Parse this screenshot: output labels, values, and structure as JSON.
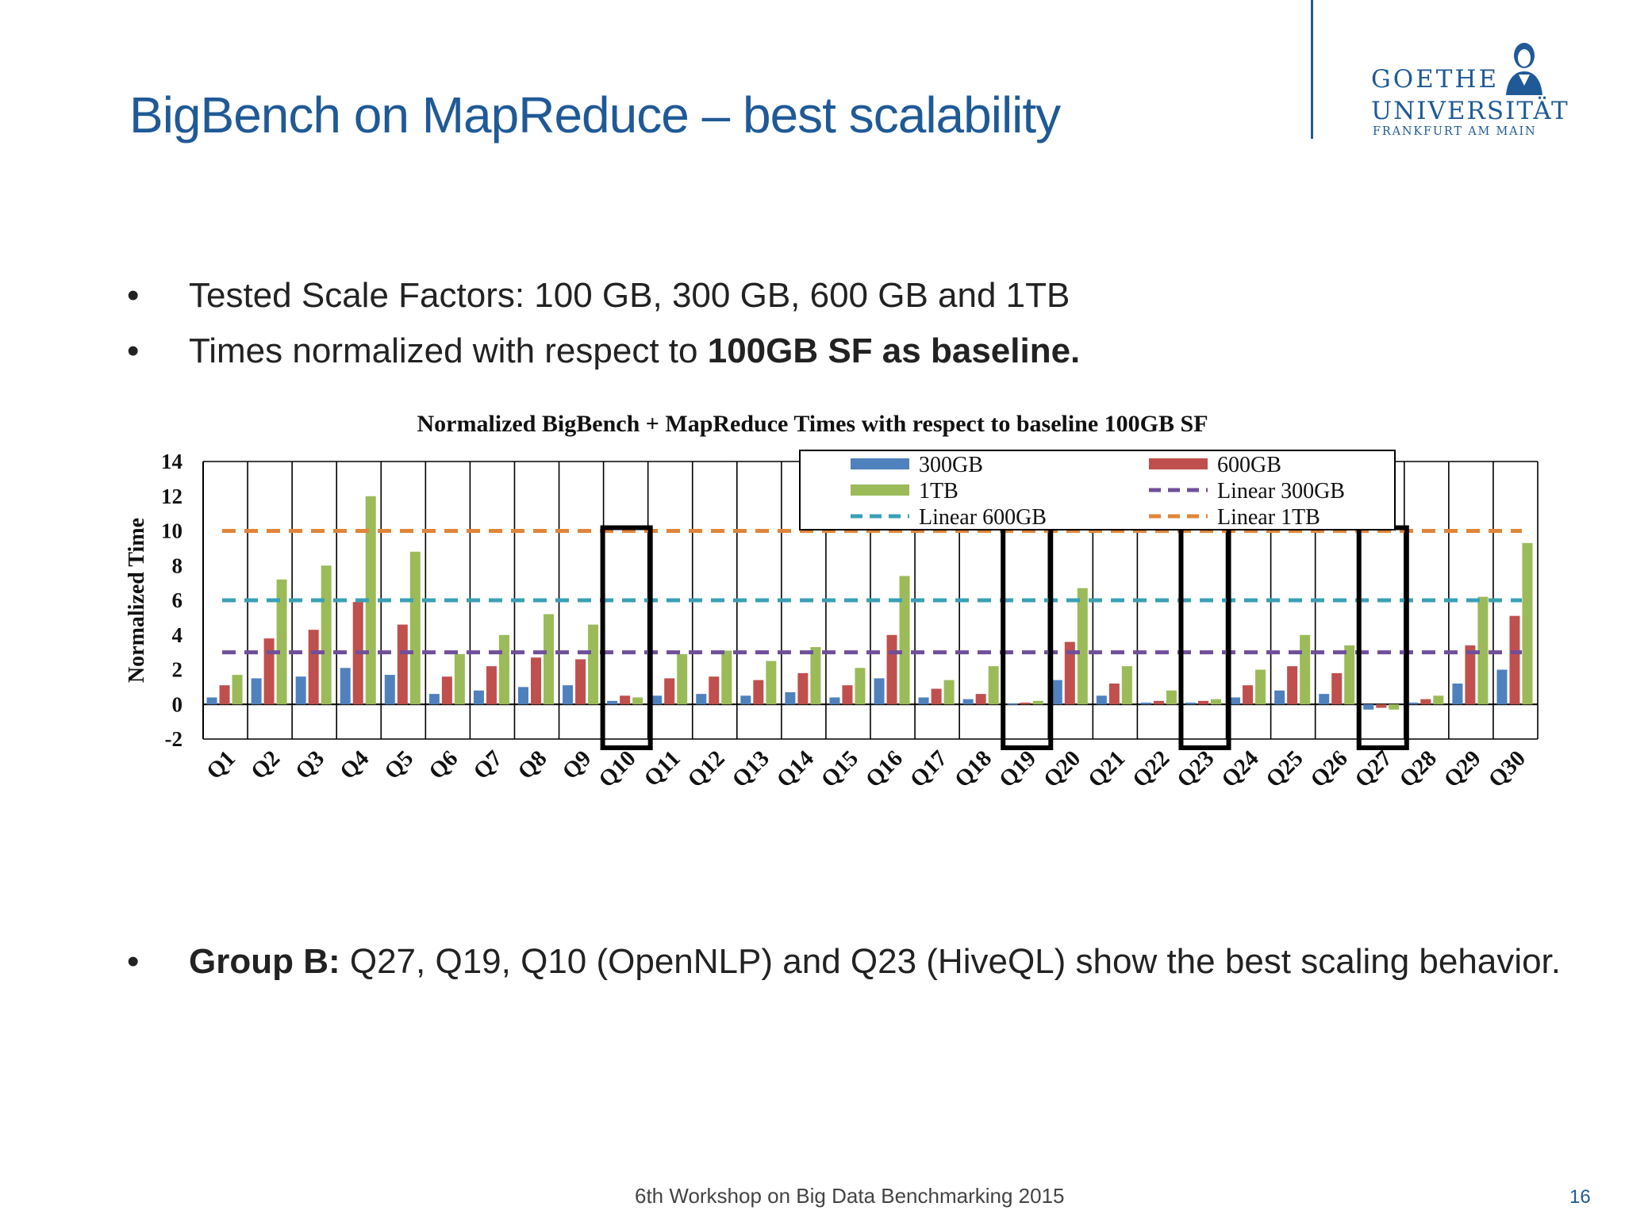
{
  "slide": {
    "title": "BigBench on MapReduce – best scalability",
    "logo": {
      "line1": "GOETHE",
      "line2": "UNIVERSITÄT",
      "line3": "FRANKFURT AM MAIN"
    },
    "bullets": [
      {
        "text": "Tested Scale Factors: 100 GB, 300 GB, 600 GB and 1TB"
      },
      {
        "text": "Times normalized with respect to ",
        "bold": "100GB SF as baseline."
      },
      {
        "bold": "Group B:",
        "text": " Q27, Q19, Q10 (OpenNLP) and Q23 (HiveQL) show the best scaling behavior."
      }
    ],
    "bullet_glyph": "•",
    "footer": "6th Workshop on Big Data Benchmarking 2015",
    "page_number": "16"
  },
  "chart_data": {
    "type": "bar",
    "title": "Normalized BigBench + MapReduce Times with respect to baseline 100GB SF",
    "ylabel": "Normalized Time",
    "xlabel": "",
    "ylim": [
      -2,
      14
    ],
    "yticks": [
      "14",
      "12",
      "10",
      "8",
      "6",
      "4",
      "2",
      "0",
      "-2"
    ],
    "grid": "vertical lines between categories",
    "categories": [
      "Q1",
      "Q2",
      "Q3",
      "Q4",
      "Q5",
      "Q6",
      "Q7",
      "Q8",
      "Q9",
      "Q10",
      "Q11",
      "Q12",
      "Q13",
      "Q14",
      "Q15",
      "Q16",
      "Q17",
      "Q18",
      "Q19",
      "Q20",
      "Q21",
      "Q22",
      "Q23",
      "Q24",
      "Q25",
      "Q26",
      "Q27",
      "Q28",
      "Q29",
      "Q30"
    ],
    "series": [
      {
        "name": "300GB",
        "color": "#4f81bd",
        "values": [
          0.4,
          1.5,
          1.6,
          2.1,
          1.7,
          0.6,
          0.8,
          1.0,
          1.1,
          0.2,
          0.5,
          0.6,
          0.5,
          0.7,
          0.4,
          1.5,
          0.4,
          0.3,
          0.05,
          1.4,
          0.5,
          0.1,
          0.1,
          0.4,
          0.8,
          0.6,
          -0.3,
          0.1,
          1.2,
          2.0
        ]
      },
      {
        "name": "600GB",
        "color": "#c0504d",
        "values": [
          1.1,
          3.8,
          4.3,
          5.9,
          4.6,
          1.6,
          2.2,
          2.7,
          2.6,
          0.5,
          1.5,
          1.6,
          1.4,
          1.8,
          1.1,
          4.0,
          0.9,
          0.6,
          0.1,
          3.6,
          1.2,
          0.2,
          0.2,
          1.1,
          2.2,
          1.8,
          -0.2,
          0.3,
          3.4,
          5.1
        ]
      },
      {
        "name": "1TB",
        "color": "#9bbb59",
        "values": [
          1.7,
          7.2,
          8.0,
          12.0,
          8.8,
          2.9,
          4.0,
          5.2,
          4.6,
          0.4,
          2.9,
          3.1,
          2.5,
          3.3,
          2.1,
          7.4,
          1.4,
          2.2,
          0.2,
          6.7,
          2.2,
          0.8,
          0.3,
          2.0,
          4.0,
          3.4,
          -0.3,
          0.5,
          6.2,
          9.3
        ]
      }
    ],
    "reference_lines": [
      {
        "name": "Linear 300GB",
        "value": 3,
        "color": "#6f4f9a",
        "style": "dashed"
      },
      {
        "name": "Linear 600GB",
        "value": 6,
        "color": "#3aa0b5",
        "style": "dashed"
      },
      {
        "name": "Linear 1TB",
        "value": 10,
        "color": "#e0853a",
        "style": "dashed"
      }
    ],
    "legend_order": [
      "300GB",
      "600GB",
      "1TB",
      "Linear 300GB",
      "Linear 600GB",
      "Linear 1TB"
    ],
    "legend_position": "top-right",
    "highlighted_categories": [
      "Q10",
      "Q19",
      "Q23",
      "Q27"
    ]
  }
}
